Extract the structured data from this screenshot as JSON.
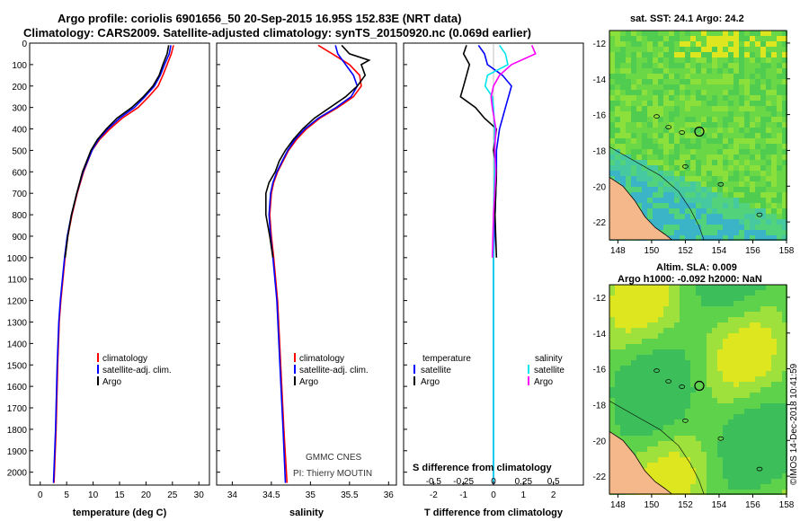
{
  "header": {
    "line1": "Argo profile: coriolis 6901656_50 20-Sep-2015 16.95S 152.83E (NRT data)",
    "line2": "Climatology: CARS2009. Satellite-adjusted climatology: synTS_20150920.nc (0.069d earlier)"
  },
  "colors": {
    "climatology": "#ff0000",
    "satellite": "#0000ff",
    "argo": "#000000",
    "sal_sat": "#00e5ee",
    "sal_argo": "#ff00ff",
    "land": "#f5b88a"
  },
  "depth_ticks": [
    "0",
    "100",
    "200",
    "300",
    "400",
    "500",
    "600",
    "700",
    "800",
    "900",
    "1000",
    "1100",
    "1200",
    "1300",
    "1400",
    "1500",
    "1600",
    "1700",
    "1800",
    "1900",
    "2000"
  ],
  "chart_data": [
    {
      "type": "line",
      "id": "temperature",
      "xlabel": "temperature (deg C)",
      "ylabel": "depth",
      "xlim": [
        -2,
        32
      ],
      "ylim": [
        2060,
        0
      ],
      "xticks": [
        "0",
        "5",
        "10",
        "15",
        "20",
        "25",
        "30"
      ],
      "legend": [
        "climatology",
        "satellite-adj. clim.",
        "Argo"
      ],
      "series": [
        {
          "name": "climatology",
          "depth": [
            10,
            50,
            100,
            150,
            200,
            250,
            300,
            350,
            400,
            450,
            500,
            600,
            700,
            800,
            900,
            1000,
            1200,
            1300,
            1500,
            1800,
            2050
          ],
          "values": [
            25.2,
            24.8,
            24.0,
            23.2,
            22.3,
            20.5,
            18.5,
            15.5,
            13.2,
            11.2,
            9.8,
            8.2,
            7.0,
            6.0,
            5.2,
            4.7,
            3.9,
            3.6,
            3.3,
            3.0,
            2.6
          ]
        },
        {
          "name": "satellite-adj. clim.",
          "depth": [
            10,
            50,
            100,
            150,
            200,
            250,
            300,
            350,
            400,
            450,
            500,
            600,
            700,
            800,
            900,
            1000,
            1200,
            1300,
            1500,
            1800,
            2050
          ],
          "values": [
            24.7,
            24.4,
            23.5,
            22.7,
            21.6,
            19.8,
            17.8,
            15.0,
            12.8,
            11.0,
            9.8,
            8.1,
            6.9,
            5.9,
            5.1,
            4.6,
            3.8,
            3.5,
            3.2,
            2.9,
            2.5
          ]
        },
        {
          "name": "Argo",
          "depth": [
            10,
            50,
            100,
            150,
            200,
            250,
            300,
            350,
            400,
            450,
            500,
            600,
            700,
            800,
            900,
            1000
          ],
          "values": [
            24.3,
            24.0,
            23.2,
            22.5,
            21.3,
            19.5,
            17.3,
            14.5,
            12.5,
            10.8,
            9.6,
            8.0,
            6.9,
            5.9,
            5.2,
            4.7
          ]
        }
      ]
    },
    {
      "type": "line",
      "id": "salinity",
      "xlabel": "salinity",
      "ylabel": "depth",
      "xlim": [
        33.8,
        36.1
      ],
      "ylim": [
        2060,
        0
      ],
      "xticks": [
        "34",
        "34.5",
        "35",
        "35.5",
        "36"
      ],
      "legend": [
        "climatology",
        "satellite-adj. clim.",
        "Argo"
      ],
      "watermark": [
        "GMMC CNES",
        "PI: Thierry MOUTIN"
      ],
      "series": [
        {
          "name": "climatology",
          "depth": [
            10,
            50,
            100,
            150,
            200,
            250,
            300,
            350,
            400,
            450,
            500,
            550,
            600,
            650,
            700,
            800,
            900,
            1000,
            1200,
            1500,
            1800,
            2050
          ],
          "values": [
            35.1,
            35.28,
            35.5,
            35.63,
            35.65,
            35.55,
            35.35,
            35.12,
            34.95,
            34.82,
            34.72,
            34.65,
            34.58,
            34.53,
            34.5,
            34.48,
            34.5,
            34.53,
            34.58,
            34.62,
            34.66,
            34.7
          ]
        },
        {
          "name": "satellite-adj. clim.",
          "depth": [
            10,
            50,
            100,
            150,
            200,
            250,
            300,
            350,
            400,
            450,
            500,
            550,
            600,
            650,
            700,
            800,
            900,
            1000,
            1200,
            1500,
            1800,
            2050
          ],
          "values": [
            35.32,
            35.35,
            35.45,
            35.55,
            35.6,
            35.52,
            35.33,
            35.1,
            34.93,
            34.8,
            34.71,
            34.64,
            34.57,
            34.52,
            34.49,
            34.47,
            34.49,
            34.52,
            34.57,
            34.61,
            34.65,
            34.68
          ]
        },
        {
          "name": "Argo",
          "depth": [
            10,
            50,
            80,
            100,
            150,
            200,
            250,
            300,
            350,
            400,
            450,
            500,
            550,
            600,
            650,
            700,
            800,
            900,
            1000
          ],
          "values": [
            35.4,
            35.5,
            35.75,
            35.65,
            35.7,
            35.6,
            35.45,
            35.25,
            35.05,
            34.9,
            34.78,
            34.68,
            34.6,
            34.55,
            34.47,
            34.43,
            34.43,
            34.48,
            34.52
          ]
        }
      ]
    },
    {
      "type": "line",
      "id": "differences",
      "xlabel": "T difference from climatology",
      "xlabel2": "S difference from climatology",
      "ylabel": "depth",
      "xlim": [
        -3,
        3
      ],
      "ylim": [
        2060,
        0
      ],
      "xticks": [
        "-2",
        "-1",
        "0",
        "1",
        "2"
      ],
      "xticks_s": [
        "-0.5",
        "-0.25",
        "0",
        "0.25",
        "0.5"
      ],
      "legend_t_title": "temperature",
      "legend_s_title": "salinity",
      "legend_t": [
        "satellite",
        "Argo"
      ],
      "legend_s": [
        "satellite",
        "Argo"
      ],
      "series": [
        {
          "name": "T satellite",
          "depth": [
            10,
            50,
            100,
            150,
            200,
            250,
            300,
            400,
            500,
            600,
            800,
            1000,
            1300,
            1500,
            2050
          ],
          "values": [
            -0.5,
            -0.3,
            -0.2,
            0.3,
            0.6,
            0.5,
            0.4,
            0.2,
            0.1,
            0.1,
            0.05,
            0.0,
            0.0,
            0.0,
            0.0
          ]
        },
        {
          "name": "T Argo",
          "depth": [
            10,
            50,
            100,
            150,
            200,
            250,
            300,
            350,
            400,
            500,
            600,
            800,
            1000
          ],
          "values": [
            -0.9,
            -1.0,
            -0.8,
            -0.9,
            -1.0,
            -1.1,
            -0.6,
            -0.3,
            0.1,
            0.0,
            0.1,
            0.05,
            0.1
          ]
        },
        {
          "name": "S satellite",
          "depth": [
            10,
            50,
            100,
            150,
            200,
            250,
            300,
            400,
            500,
            600,
            800,
            1000,
            1300,
            1500,
            2050
          ],
          "values": [
            0.05,
            0.1,
            0.12,
            -0.05,
            -0.07,
            -0.01,
            0.0,
            0.01,
            0.01,
            0.01,
            0.0,
            0.0,
            0.0,
            0.0,
            0.0
          ]
        },
        {
          "name": "S Argo",
          "depth": [
            10,
            50,
            100,
            150,
            200,
            250,
            300,
            400,
            500,
            600,
            800,
            1000
          ],
          "values": [
            0.32,
            0.35,
            0.15,
            0.05,
            0.0,
            -0.02,
            -0.01,
            0.02,
            0.01,
            0.02,
            0.0,
            -0.01
          ]
        }
      ]
    },
    {
      "type": "heatmap",
      "id": "sst_map",
      "title": "sat. SST: 24.1 Argo: 24.2",
      "xticks": [
        "148",
        "150",
        "152",
        "154",
        "156",
        "158"
      ],
      "yticks": [
        "-12",
        "-14",
        "-16",
        "-18",
        "-20",
        "-22"
      ],
      "xlim": [
        147.5,
        158
      ],
      "ylim": [
        -23,
        -11.3
      ],
      "argo_position": [
        152.83,
        -16.95
      ]
    },
    {
      "type": "heatmap",
      "id": "sla_map",
      "title": "Altim. SLA: 0.009",
      "subtitle": "Argo h1000: -0.092 h2000: NaN",
      "xticks": [
        "148",
        "150",
        "152",
        "154",
        "156",
        "158"
      ],
      "yticks": [
        "-12",
        "-14",
        "-16",
        "-18",
        "-20",
        "-22"
      ],
      "xlim": [
        147.5,
        158
      ],
      "ylim": [
        -23,
        -11.3
      ],
      "argo_position": [
        152.83,
        -16.95
      ]
    }
  ],
  "footer": {
    "stamp": "©IMOS 14-Dec-2018 10:41:59"
  }
}
